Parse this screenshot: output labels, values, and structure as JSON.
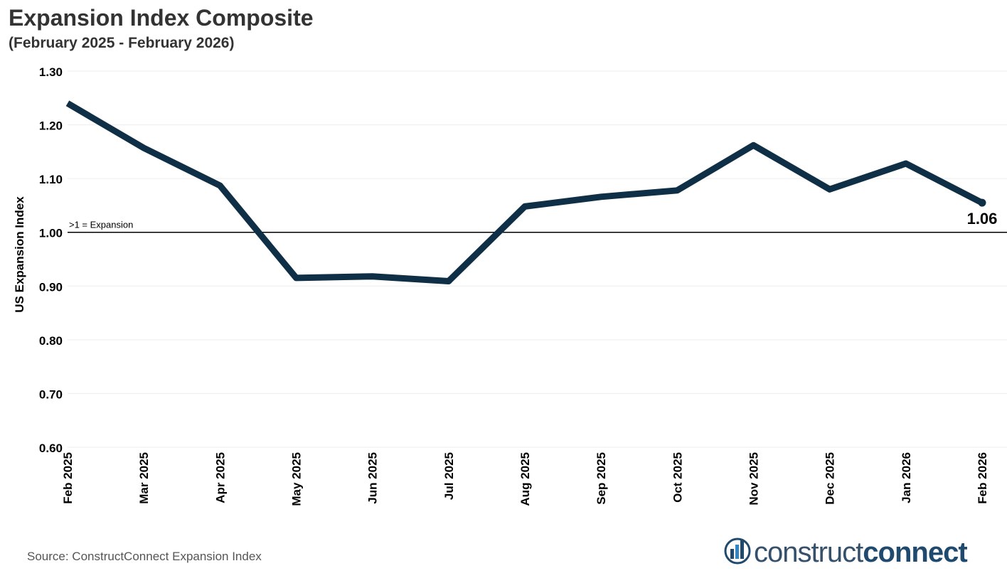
{
  "chart_data": {
    "type": "line",
    "title": "Expansion Index Composite",
    "subtitle": "(February 2025 - February 2026)",
    "ylabel": "US Expansion Index",
    "xlabel": "",
    "ylim": [
      0.6,
      1.3
    ],
    "y_ticks": [
      "0.60",
      "0.70",
      "0.80",
      "0.90",
      "1.00",
      "1.10",
      "1.20",
      "1.30"
    ],
    "grid": true,
    "categories": [
      "Feb 2025",
      "Mar 2025",
      "Apr 2025",
      "May 2025",
      "Jun 2025",
      "Jul 2025",
      "Aug 2025",
      "Sep 2025",
      "Oct 2025",
      "Nov 2025",
      "Dec 2025",
      "Jan 2026",
      "Feb 2026"
    ],
    "series": [
      {
        "values": [
          1.24,
          1.157,
          1.087,
          0.915,
          0.918,
          0.909,
          1.048,
          1.066,
          1.078,
          1.162,
          1.08,
          1.128,
          1.055
        ]
      }
    ],
    "reference_line": {
      "value": 1.0,
      "label": ">1 = Expansion"
    },
    "last_value_label": "1.06",
    "line_color": "#0e2f46"
  },
  "source": "Source: ConstructConnect Expansion Index",
  "logo": {
    "light": "construct",
    "bold": "connect"
  },
  "colors": {
    "line": "#0e2f46",
    "grid": "#eeeeee",
    "logo": "#1f4a6e"
  }
}
